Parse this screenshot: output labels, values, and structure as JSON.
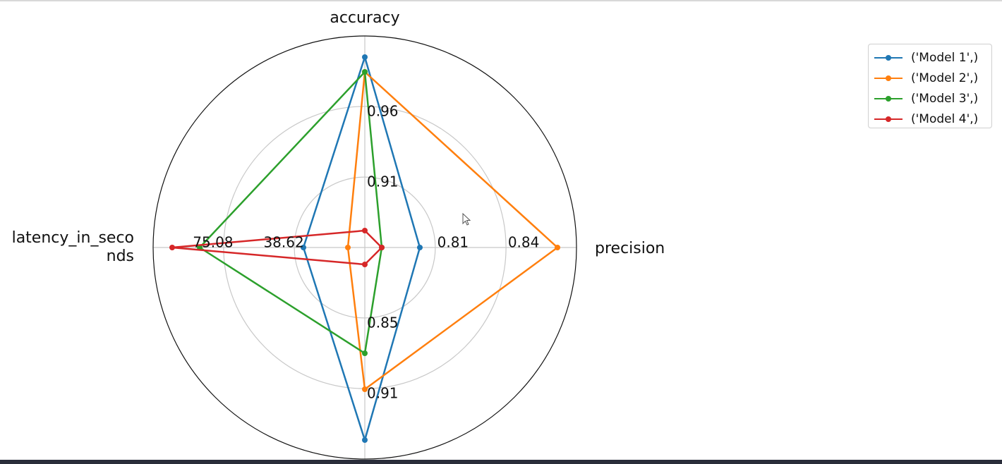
{
  "chart_data": {
    "type": "radar",
    "axes": [
      {
        "label": "accuracy",
        "ticks": [
          "0.91",
          "0.96"
        ]
      },
      {
        "label": "precision",
        "ticks": [
          "0.81",
          "0.84"
        ]
      },
      {
        "label": "",
        "ticks": [
          "0.85",
          "0.91"
        ]
      },
      {
        "label": "latency_in_seco\nnds",
        "ticks": [
          "38.62",
          "75.08"
        ]
      }
    ],
    "grid": true,
    "legend_position": "top-right",
    "series": [
      {
        "name": "('Model 1',)",
        "color": "#1f77b4",
        "values": [
          0.9,
          0.26,
          0.91,
          0.29
        ]
      },
      {
        "name": "('Model 2',)",
        "color": "#ff7f0e",
        "values": [
          0.83,
          0.91,
          0.67,
          0.08
        ]
      },
      {
        "name": "('Model 3',)",
        "color": "#2ca02c",
        "values": [
          0.83,
          0.08,
          0.5,
          0.78
        ]
      },
      {
        "name": "('Model 4',)",
        "color": "#d62728",
        "values": [
          0.08,
          0.08,
          0.08,
          0.91
        ]
      }
    ]
  }
}
